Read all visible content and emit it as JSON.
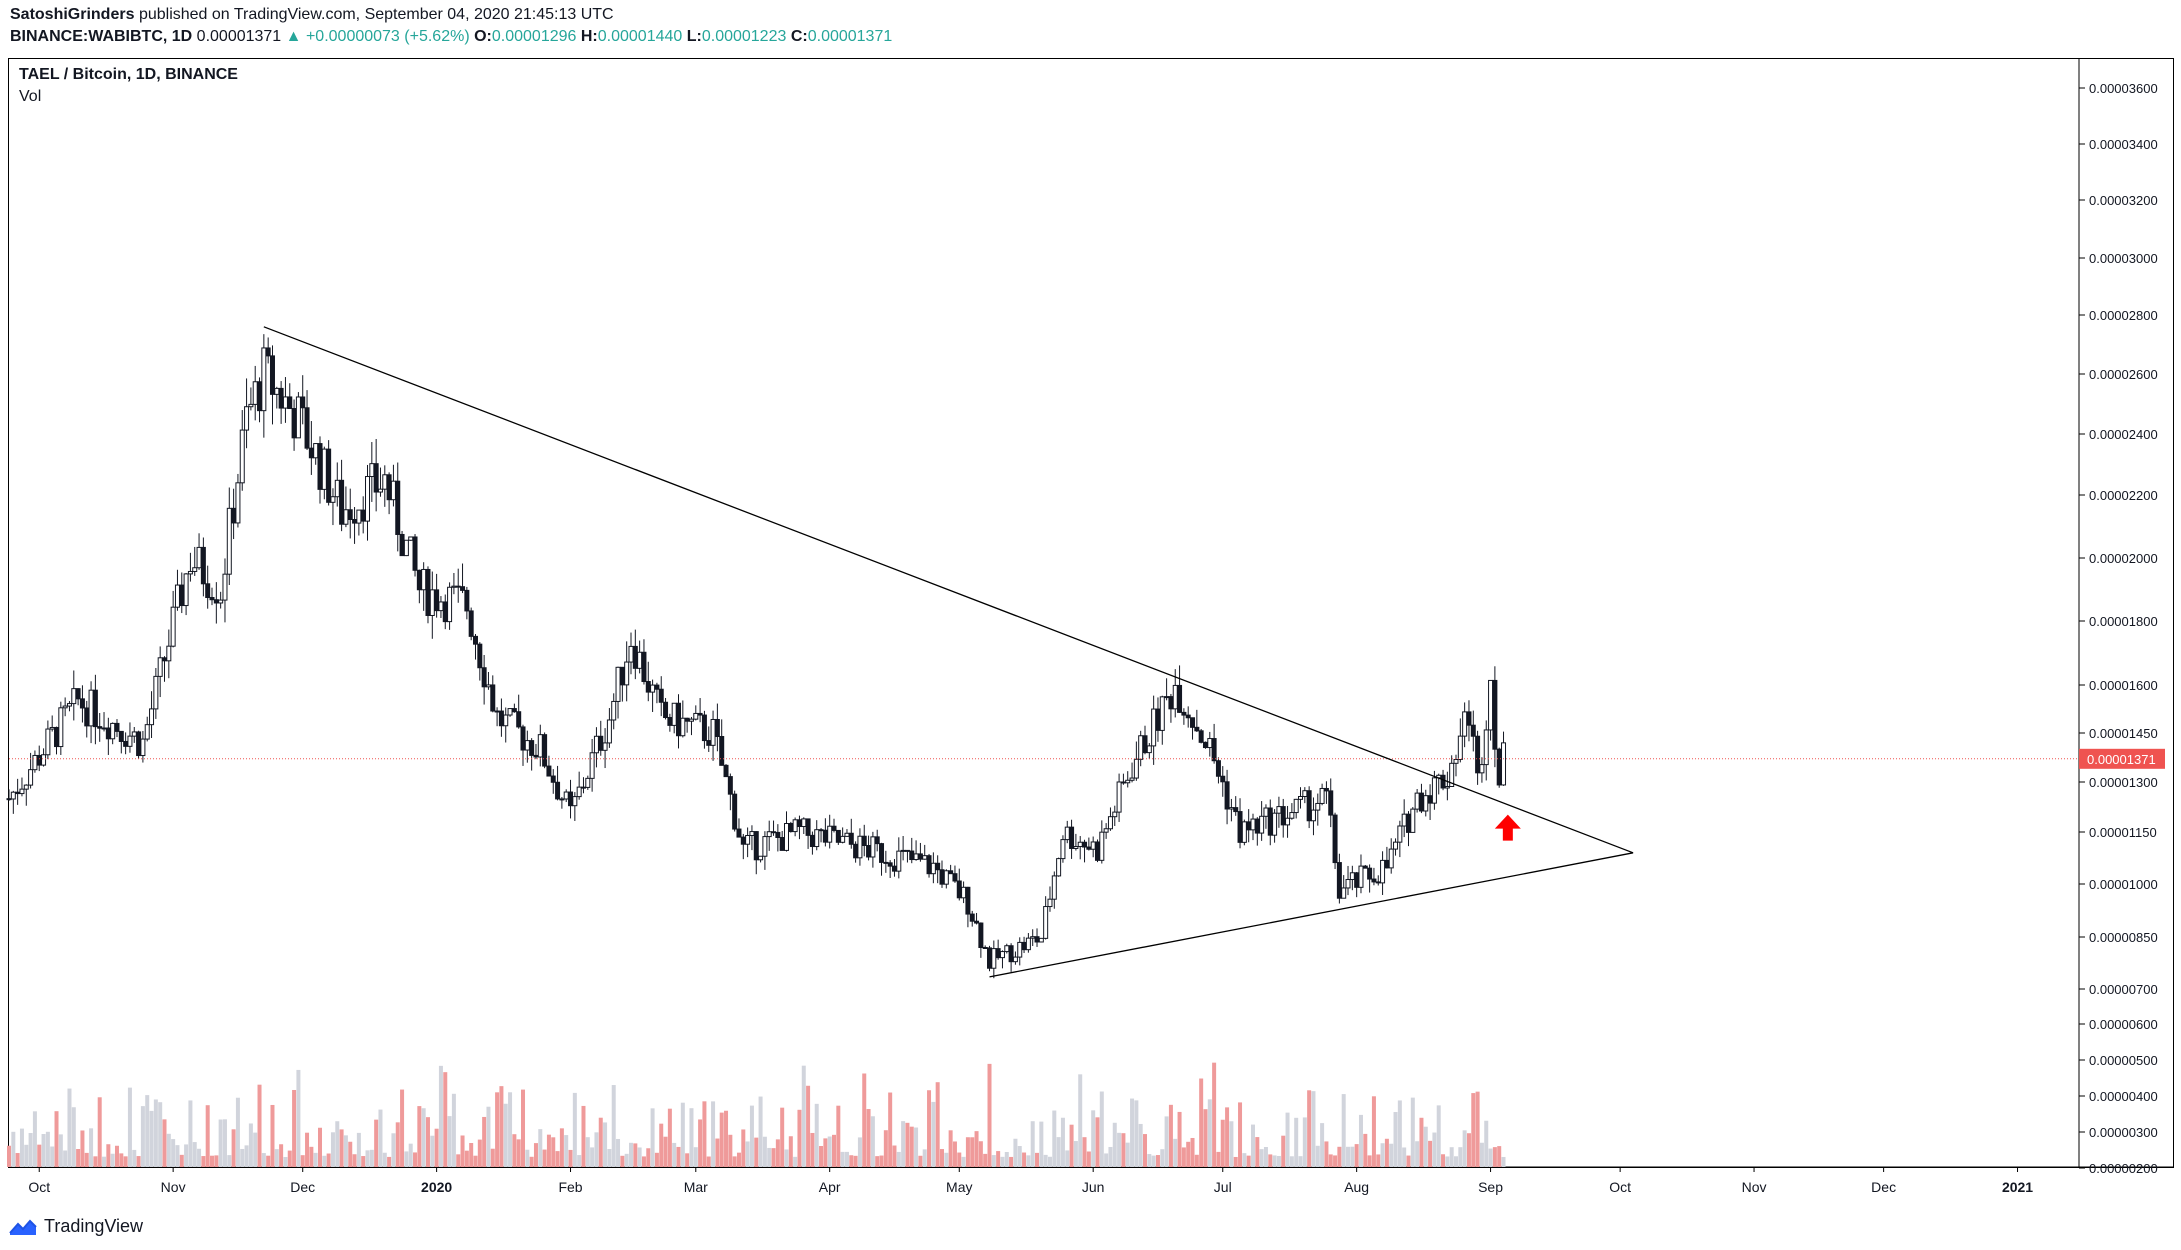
{
  "header": {
    "author": "SatoshiGrinders",
    "published": "published on TradingView.com, September 04, 2020 21:45:13 UTC",
    "symbol": "BINANCE:WABIBTC, 1D",
    "last": "0.00001371",
    "change_arrow": "▲",
    "change": "+0.00000073 (+5.62%)",
    "o_label": "O:",
    "o_value": "0.00001296",
    "h_label": "H:",
    "h_value": "0.00001440",
    "l_label": "L:",
    "l_value": "0.00001223",
    "c_label": "C:",
    "c_value": "0.00001371"
  },
  "legend": {
    "title": "TAEL / Bitcoin, 1D, BINANCE",
    "vol": "Vol"
  },
  "footer": {
    "brand": "TradingView",
    "logo_icon": "tradingview-logo-icon"
  },
  "colors": {
    "up": "#26a69a",
    "down": "#ef5350",
    "candle": "#131722",
    "vol_up": "#d1d4dc",
    "vol_down": "#ef9a9a",
    "price_label_bg": "#ef5350",
    "arrow": "#ff0000"
  },
  "chart_data": {
    "type": "candlestick",
    "current_price": "0.00001371",
    "y_ticks": [
      "0.00003600",
      "0.00003400",
      "0.00003200",
      "0.00003000",
      "0.00002800",
      "0.00002600",
      "0.00002400",
      "0.00002200",
      "0.00002000",
      "0.00001800",
      "0.00001600",
      "0.00001450",
      "0.00001300",
      "0.00001150",
      "0.00001000",
      "0.00000850",
      "0.00000700",
      "0.00000600",
      "0.00000500",
      "0.00000400",
      "0.00000300",
      "0.00000200"
    ],
    "x_ticks": [
      "Oct",
      "Nov",
      "Dec",
      "2020",
      "Feb",
      "Mar",
      "Apr",
      "May",
      "Jun",
      "Jul",
      "Aug",
      "Sep",
      "Oct",
      "Nov",
      "Dec",
      "2021"
    ],
    "x_ticks_bold": [
      "2020",
      "2021"
    ],
    "x_range": [
      "2019-09-24",
      "2021-01-15"
    ],
    "last_candle_date": "2020-09-04",
    "key_points": [
      {
        "date": "2019-11-22",
        "price": 2.76e-05,
        "label": "high"
      },
      {
        "date": "2020-05-08",
        "price": 7.35e-06,
        "label": "low"
      },
      {
        "date": "2020-06-20",
        "price": 1.64e-05
      },
      {
        "date": "2020-08-27",
        "price": 1.52e-05
      },
      {
        "date": "2020-09-01",
        "price": 1.64e-05
      }
    ],
    "trendlines": [
      {
        "from": {
          "date": "2019-11-22",
          "price": 2.76e-05
        },
        "to": {
          "date": "2020-10-04",
          "price": 1.09e-05
        }
      },
      {
        "from": {
          "date": "2020-05-08",
          "price": 7.35e-06
        },
        "to": {
          "date": "2020-10-04",
          "price": 1.09e-05
        }
      }
    ],
    "arrow_annotation": {
      "date": "2020-09-05",
      "price": 1.16e-05,
      "direction": "up"
    }
  }
}
